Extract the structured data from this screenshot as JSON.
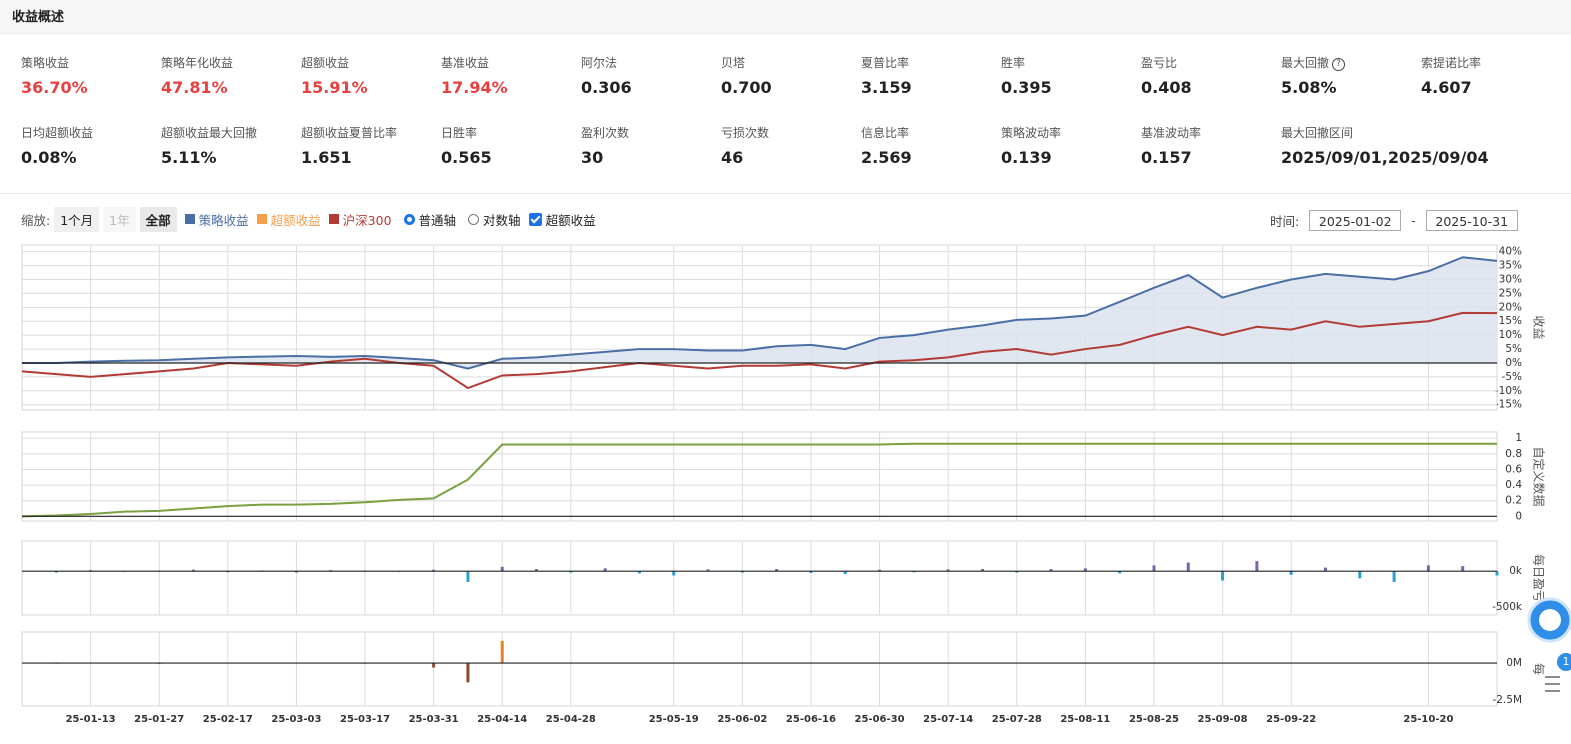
{
  "header": {
    "title": "收益概述"
  },
  "metrics": {
    "rows": [
      [
        {
          "label": "策略收益",
          "value": "36.70%",
          "color": "#e8403f"
        },
        {
          "label": "策略年化收益",
          "value": "47.81%",
          "color": "#e8403f"
        },
        {
          "label": "超额收益",
          "value": "15.91%",
          "color": "#e8403f"
        },
        {
          "label": "基准收益",
          "value": "17.94%",
          "color": "#e8403f"
        },
        {
          "label": "阿尔法",
          "value": "0.306"
        },
        {
          "label": "贝塔",
          "value": "0.700"
        },
        {
          "label": "夏普比率",
          "value": "3.159"
        },
        {
          "label": "胜率",
          "value": "0.395"
        },
        {
          "label": "盈亏比",
          "value": "0.408"
        },
        {
          "label": "最大回撤",
          "value": "5.08%",
          "hint": "?"
        },
        {
          "label": "索提诺比率",
          "value": "4.607"
        }
      ],
      [
        {
          "label": "日均超额收益",
          "value": "0.08%"
        },
        {
          "label": "超额收益最大回撤",
          "value": "5.11%"
        },
        {
          "label": "超额收益夏普比率",
          "value": "1.651"
        },
        {
          "label": "日胜率",
          "value": "0.565"
        },
        {
          "label": "盈利次数",
          "value": "30"
        },
        {
          "label": "亏损次数",
          "value": "46"
        },
        {
          "label": "信息比率",
          "value": "2.569"
        },
        {
          "label": "策略波动率",
          "value": "0.139"
        },
        {
          "label": "基准波动率",
          "value": "0.157"
        },
        {
          "label": "最大回撤区间",
          "value": "2025/09/01,2025/09/04"
        }
      ]
    ]
  },
  "toolbar": {
    "zoom_label": "缩放:",
    "zoom_buttons": [
      {
        "label": "1个月"
      },
      {
        "label": "1年",
        "disabled": true
      },
      {
        "label": "全部",
        "active": true
      }
    ],
    "excess_legend": {
      "name": "超额收益",
      "color": "#f7a04b"
    },
    "axis_options": [
      {
        "label": "普通轴",
        "checked": true
      },
      {
        "label": "对数轴",
        "checked": false
      }
    ],
    "excess_checkbox": {
      "label": "超额收益",
      "checked": true
    },
    "time_label": "时间:",
    "start_date": "2025-01-02",
    "date_sep": "-",
    "end_date": "2025-10-31"
  },
  "widget": {
    "badge": "1"
  },
  "chart_data": [
    {
      "type": "line",
      "axis_title": "收益",
      "grid": true,
      "ylim": [
        -16.9,
        42.4
      ],
      "yticks": [
        {
          "value": 40,
          "label": "40%"
        },
        {
          "value": 35,
          "label": "35%"
        },
        {
          "value": 30,
          "label": "30%"
        },
        {
          "value": 25,
          "label": "25%"
        },
        {
          "value": 20,
          "label": "20%"
        },
        {
          "value": 15,
          "label": "15%"
        },
        {
          "value": 10,
          "label": "10%"
        },
        {
          "value": 5,
          "label": "5%"
        },
        {
          "value": 0,
          "label": "0%"
        },
        {
          "value": -5,
          "label": "-5%"
        },
        {
          "value": -10,
          "label": "-10%"
        },
        {
          "value": -15,
          "label": "-15%"
        }
      ],
      "series": [
        {
          "name": "策略收益",
          "color": "#4a6fa5",
          "area_color": "#dce3ee",
          "values": [
            0,
            0,
            0.5,
            0.8,
            1,
            1.5,
            2,
            2.3,
            2.5,
            2.2,
            2.5,
            1.8,
            1,
            -2,
            1.5,
            2,
            3,
            4,
            5,
            5,
            4.5,
            4.5,
            6,
            6.5,
            5,
            9,
            10,
            12,
            13.5,
            15.5,
            16,
            17,
            22,
            27,
            31.6,
            23.5,
            27,
            30,
            32,
            31,
            30,
            33,
            38,
            36.7
          ]
        },
        {
          "name": "沪深300",
          "color": "#b23b36",
          "values": [
            -3,
            -4,
            -5,
            -4,
            -3,
            -2,
            0,
            -0.5,
            -1,
            0.5,
            1.5,
            0,
            -1,
            -9,
            -4.5,
            -4,
            -3,
            -1.5,
            0,
            -1,
            -2,
            -1,
            -1,
            -0.5,
            -2,
            0.5,
            1,
            2,
            4,
            5,
            3,
            5,
            6.5,
            10,
            13,
            10,
            13,
            12,
            15,
            13,
            14,
            15,
            18,
            17.9
          ]
        }
      ]
    },
    {
      "type": "line",
      "axis_title": "自定义数据",
      "grid": true,
      "ylim": [
        -0.06,
        1.08
      ],
      "yticks": [
        1,
        0.8,
        0.6,
        0.4,
        0.2,
        0
      ],
      "series": [
        {
          "color": "#7aa03f",
          "values": [
            0,
            0.01,
            0.03,
            0.06,
            0.07,
            0.1,
            0.13,
            0.15,
            0.15,
            0.16,
            0.18,
            0.21,
            0.23,
            0.47,
            0.92,
            0.92,
            0.92,
            0.92,
            0.92,
            0.92,
            0.92,
            0.92,
            0.92,
            0.92,
            0.92,
            0.92,
            0.93,
            0.93,
            0.93,
            0.93,
            0.93,
            0.93,
            0.93,
            0.93,
            0.93,
            0.93,
            0.93,
            0.93,
            0.93,
            0.93,
            0.93,
            0.93,
            0.93,
            0.93
          ]
        }
      ]
    },
    {
      "type": "bar",
      "axis_title": "每日盈亏",
      "grid": false,
      "ylim": [
        -610000,
        420000
      ],
      "yticks": [
        {
          "value": 0,
          "label": "0k"
        },
        {
          "value": -500000,
          "label": "-500k"
        }
      ],
      "pos_color": "#7b62b0",
      "neg_color": "#2a9fd0",
      "values": [
        0,
        -20000,
        15000,
        -10000,
        10000,
        20000,
        -15000,
        10000,
        -20000,
        15000,
        10000,
        -10000,
        20000,
        -150000,
        60000,
        30000,
        -20000,
        40000,
        -30000,
        -60000,
        25000,
        -20000,
        30000,
        -25000,
        -40000,
        20000,
        -15000,
        25000,
        30000,
        -20000,
        30000,
        40000,
        -30000,
        80000,
        120000,
        -130000,
        140000,
        -50000,
        50000,
        -100000,
        -150000,
        80000,
        70000,
        -60000
      ]
    },
    {
      "type": "bar",
      "axis_title": "每",
      "grid": false,
      "ylim": [
        -2900000,
        2100000
      ],
      "yticks": [
        {
          "value": 0,
          "label": "0M"
        },
        {
          "value": -2500000,
          "label": "-2.5M"
        }
      ],
      "pos_color": "#e8822a",
      "neg_color": "#8b4a2b",
      "values": [
        10000,
        -40000,
        -30000,
        20000,
        -50000,
        30000,
        -20000,
        10000,
        -30000,
        20000,
        -40000,
        10000,
        -300000,
        -1300000,
        1500000,
        0,
        0,
        0,
        0,
        0,
        0,
        0,
        0,
        0,
        0,
        0,
        0,
        0,
        0,
        0,
        0,
        0,
        0,
        0,
        0,
        0,
        0,
        0,
        0,
        0,
        0,
        0,
        0,
        0
      ],
      "categories": [
        null,
        null,
        "25-01-13",
        null,
        "25-01-27",
        null,
        "25-02-17",
        null,
        "25-03-03",
        null,
        "25-03-17",
        null,
        "25-03-31",
        null,
        "25-04-14",
        null,
        "25-04-28",
        null,
        null,
        "25-05-19",
        null,
        "25-06-02",
        null,
        "25-06-16",
        null,
        "25-06-30",
        null,
        "25-07-14",
        null,
        "25-07-28",
        null,
        "25-08-11",
        null,
        "25-08-25",
        null,
        "25-09-08",
        null,
        "25-09-22",
        null,
        null,
        null,
        "25-10-20",
        null,
        null
      ]
    }
  ]
}
